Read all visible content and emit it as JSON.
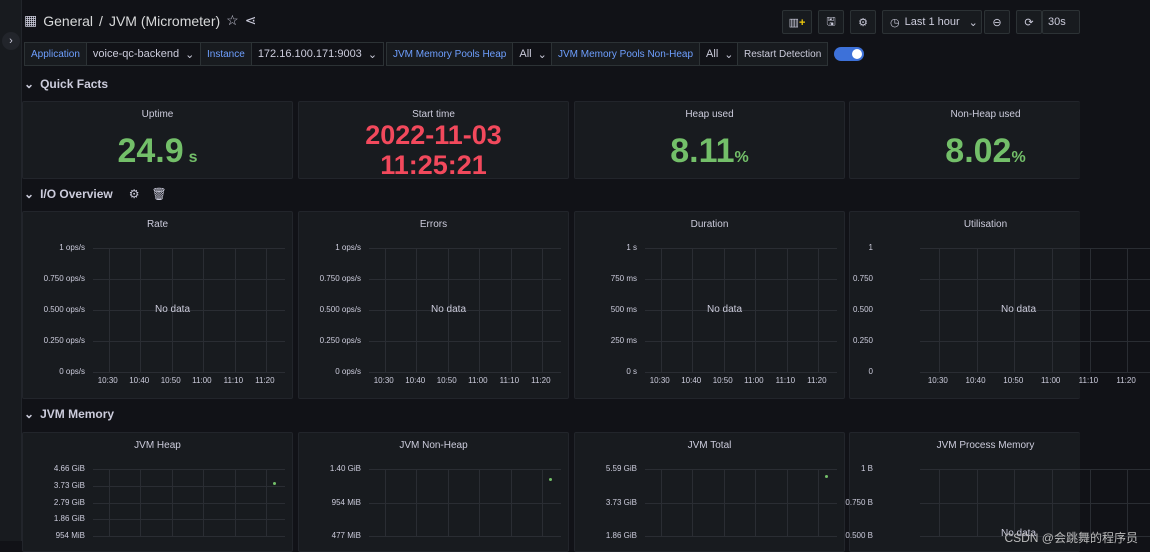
{
  "header": {
    "breadcrumb_folder": "General",
    "breadcrumb_sep": "/",
    "dashboard_title": "JVM (Micrometer)",
    "time_range": "Last 1 hour",
    "refresh": "30s"
  },
  "variables": [
    {
      "label": "Application",
      "value": "voice-qc-backend"
    },
    {
      "label": "Instance",
      "value": "172.16.100.171:9003"
    },
    {
      "label": "JVM Memory Pools Heap",
      "value": "All"
    },
    {
      "label": "JVM Memory Pools Non-Heap",
      "value": "All"
    },
    {
      "label": "Restart Detection",
      "value": ""
    }
  ],
  "rows": {
    "quick_facts": "Quick Facts",
    "io_overview": "I/O Overview",
    "jvm_memory": "JVM Memory"
  },
  "stats": [
    {
      "title": "Uptime",
      "value": "24.9",
      "unit": "s"
    },
    {
      "title": "Start time",
      "line1": "2022-11-03",
      "line2": "11:25:21"
    },
    {
      "title": "Heap used",
      "value": "8.11",
      "unit": "%"
    },
    {
      "title": "Non-Heap used",
      "value": "8.02",
      "unit": "%"
    }
  ],
  "io_panels": [
    {
      "title": "Rate",
      "yticks": [
        "1 ops/s",
        "0.750 ops/s",
        "0.500 ops/s",
        "0.250 ops/s",
        "0 ops/s"
      ],
      "message": "No data"
    },
    {
      "title": "Errors",
      "yticks": [
        "1 ops/s",
        "0.750 ops/s",
        "0.500 ops/s",
        "0.250 ops/s",
        "0 ops/s"
      ],
      "message": "No data"
    },
    {
      "title": "Duration",
      "yticks": [
        "1 s",
        "750 ms",
        "500 ms",
        "250 ms",
        "0 s"
      ],
      "message": "No data"
    },
    {
      "title": "Utilisation",
      "yticks": [
        "1",
        "0.750",
        "0.500",
        "0.250",
        "0"
      ],
      "message": "No data"
    }
  ],
  "xticks": [
    "10:30",
    "10:40",
    "10:50",
    "11:00",
    "11:10",
    "11:20"
  ],
  "mem_panels": [
    {
      "title": "JVM Heap",
      "yticks": [
        "4.66 GiB",
        "3.73 GiB",
        "2.79 GiB",
        "1.86 GiB",
        "954 MiB"
      ],
      "message": ""
    },
    {
      "title": "JVM Non-Heap",
      "yticks": [
        "1.40 GiB",
        "954 MiB",
        "477 MiB"
      ],
      "message": ""
    },
    {
      "title": "JVM Total",
      "yticks": [
        "5.59 GiB",
        "3.73 GiB",
        "1.86 GiB"
      ],
      "message": ""
    },
    {
      "title": "JVM Process Memory",
      "yticks": [
        "1 B",
        "0.750 B",
        "0.500 B"
      ],
      "message": "No data"
    }
  ],
  "watermark": "CSDN @会跳舞的程序员",
  "colors": {
    "green": "#73bf69",
    "red": "#f2495c",
    "accent": "#3d71d9"
  }
}
